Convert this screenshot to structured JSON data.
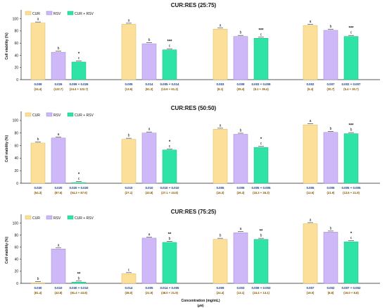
{
  "colors": {
    "CUR": "#fce09a",
    "RSV": "#cfb8f7",
    "CUR + RSV": "#2fe3a6",
    "conc_text": "#1a3a8a",
    "ratio_text": "#8a5a00"
  },
  "legend": [
    "CUR",
    "RSV",
    "CUR + RSV"
  ],
  "axes": {
    "ylabel": "Cell viability (%)",
    "xlabel": "Concentration (mg/mL)",
    "xlabel2": "(µM)",
    "yticks": [
      "0",
      "20",
      "40",
      "60",
      "80",
      "100"
    ]
  },
  "chart_data": [
    {
      "type": "bar",
      "title": "CUR:RES (25:75)",
      "ylim": [
        0,
        110
      ],
      "series": [
        {
          "name": "CUR",
          "values": [
            93,
            91,
            83,
            89
          ]
        },
        {
          "name": "RSV",
          "values": [
            45,
            59,
            71,
            81
          ]
        },
        {
          "name": "CUR + RSV",
          "values": [
            29,
            49,
            68,
            71
          ]
        }
      ],
      "letters": [
        [
          "a",
          "b",
          "c"
        ],
        [
          "a",
          "b",
          "c"
        ],
        [
          "a",
          "b",
          "c"
        ],
        [
          "a",
          "b",
          "c"
        ]
      ],
      "stars": [
        "*",
        "***",
        "***",
        "***"
      ],
      "conc": [
        [
          "0.009",
          "0.026",
          "0.009 + 0.026"
        ],
        [
          "0.005",
          "0.014",
          "0.005 + 0.014"
        ],
        [
          "0.003",
          "0.009",
          "0.003 + 0.009"
        ],
        [
          "0.002",
          "0.007",
          "0.002 + 0.007"
        ]
      ],
      "um": [
        [
          "(24.4)",
          "(122.7)",
          "(24.4 + 122.7)"
        ],
        [
          "(13.6)",
          "(61.3)",
          "(13.6 + 61.3)"
        ],
        [
          "(8.1)",
          "(39.4)",
          "(8.1 + 39.4)"
        ],
        [
          "(5.4)",
          "(30.7)",
          "(5.4 + 30.7)"
        ]
      ]
    },
    {
      "type": "bar",
      "title": "CUR:RES (50:50)",
      "ylim": [
        0,
        110
      ],
      "series": [
        {
          "name": "CUR",
          "values": [
            64,
            70,
            86,
            93
          ]
        },
        {
          "name": "RSV",
          "values": [
            72,
            80,
            78,
            81
          ]
        },
        {
          "name": "CUR + RSV",
          "values": [
            1,
            53,
            57,
            79
          ]
        }
      ],
      "letters": [
        [
          "b",
          "a",
          "c"
        ],
        [
          "b",
          "a",
          "c"
        ],
        [
          "a",
          "b",
          "c"
        ],
        [
          "a",
          "b",
          "b"
        ]
      ],
      "stars": [
        "*",
        "*",
        "*",
        "***"
      ],
      "conc": [
        [
          "0.020",
          "0.020",
          "0.020 + 0.020"
        ],
        [
          "0.010",
          "0.010",
          "0.010 + 0.010"
        ],
        [
          "0.005",
          "0.005",
          "0.005 + 0.005"
        ],
        [
          "0.005",
          "0.005",
          "0.005 + 0.005"
        ]
      ],
      "um": [
        [
          "(54.3)",
          "(87.6)",
          "(54.3 + 87.6)"
        ],
        [
          "(27.1)",
          "(43.8)",
          "(27.1 + 43.8)"
        ],
        [
          "(16.3)",
          "(26.3)",
          "(16.3 + 26.3)"
        ],
        [
          "(13.6)",
          "(21.9)",
          "(13.6 + 21.9)"
        ]
      ]
    },
    {
      "type": "bar",
      "title": "CUR:RES (75:25)",
      "ylim": [
        0,
        110
      ],
      "series": [
        {
          "name": "CUR",
          "values": [
            1,
            16,
            73,
            99
          ]
        },
        {
          "name": "RSV",
          "values": [
            57,
            75,
            84,
            85
          ]
        },
        {
          "name": "CUR + RSV",
          "values": [
            2,
            68,
            73,
            69
          ]
        }
      ],
      "letters": [
        [
          "b",
          "a",
          "b"
        ],
        [
          "c",
          "a",
          "b"
        ],
        [
          "b",
          "a",
          "b"
        ],
        [
          "a",
          "b",
          "c"
        ]
      ],
      "stars": [
        "**",
        "**",
        "**",
        "*"
      ],
      "conc": [
        [
          "0.030",
          "0.010",
          "0.030 + 0.010"
        ],
        [
          "0.014",
          "0.005",
          "0.014 + 0.005"
        ],
        [
          "0.009",
          "0.003",
          "0.009 + 0.003"
        ],
        [
          "0.007",
          "0.002",
          "0.007 + 0.002"
        ]
      ],
      "um": [
        [
          "(81.4)",
          "(43.8)",
          "(81.4 + 43.8)"
        ],
        [
          "(38.0)",
          "(21.9)",
          "(38.0 + 21.9)"
        ],
        [
          "(24.4)",
          "(13.1)",
          "(24.4 + 13.1)"
        ],
        [
          "(19.0)",
          "(8.8)",
          "(19.0 + 8.8)"
        ]
      ]
    }
  ]
}
